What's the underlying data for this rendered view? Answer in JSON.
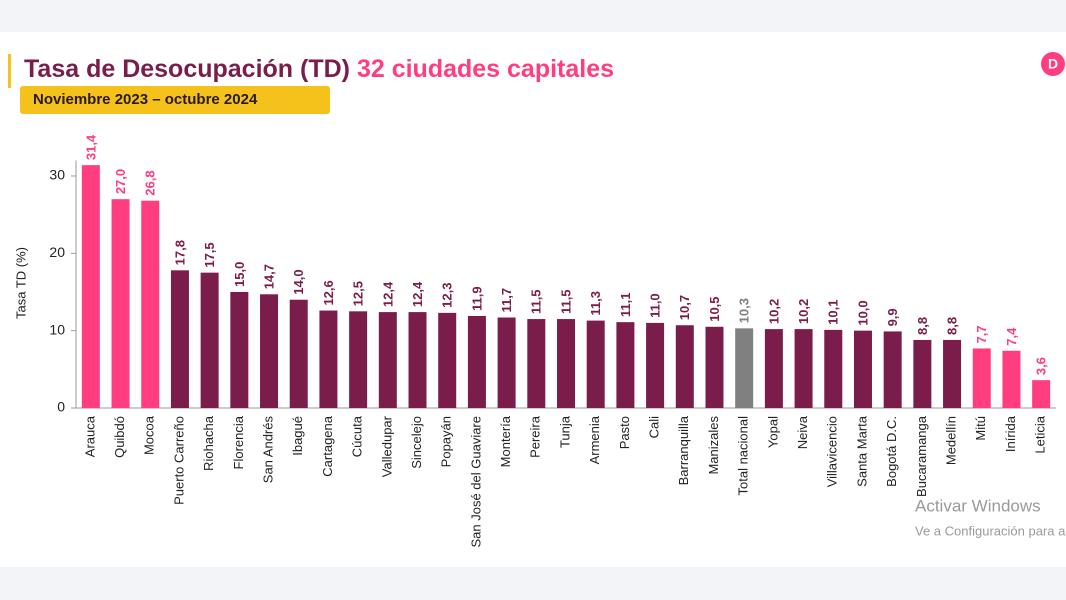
{
  "chart_data": {
    "type": "bar",
    "title": "Tasa de Desocupación (TD)",
    "title_highlight": "32 ciudades capitales",
    "subtitle": "Noviembre 2023 – octubre 2024",
    "y_label": "Tasa TD (%)",
    "categories": [
      "Arauca",
      "Quibdó",
      "Mocoa",
      "Puerto Carreño",
      "Riohacha",
      "Florencia",
      "San Andrés",
      "Ibagué",
      "Cartagena",
      "Cúcuta",
      "Valledupar",
      "Sincelejo",
      "Popayán",
      "San José del Guaviare",
      "Montería",
      "Pereira",
      "Tunja",
      "Armenia",
      "Pasto",
      "Cali",
      "Barranquilla",
      "Manizales",
      "Total nacional",
      "Yopal",
      "Neiva",
      "Villavicencio",
      "Santa Marta",
      "Bogotá D.C.",
      "Bucaramanga",
      "Medellín",
      "Mitú",
      "Inírida",
      "Leticia"
    ],
    "values": [
      31.4,
      27.0,
      26.8,
      17.8,
      17.5,
      15.0,
      14.7,
      14.0,
      12.6,
      12.5,
      12.4,
      12.4,
      12.3,
      11.9,
      11.7,
      11.5,
      11.5,
      11.3,
      11.1,
      11.0,
      10.7,
      10.5,
      10.3,
      10.2,
      10.2,
      10.1,
      10.0,
      9.9,
      8.8,
      8.8,
      7.7,
      7.4,
      3.6
    ],
    "value_labels": [
      "31,4",
      "27,0",
      "26,8",
      "17,8",
      "17,5",
      "15,0",
      "14,7",
      "14,0",
      "12,6",
      "12,5",
      "12,4",
      "12,4",
      "12,3",
      "11,9",
      "11,7",
      "11,5",
      "11,5",
      "11,3",
      "11,1",
      "11,0",
      "10,7",
      "10,5",
      "10,3",
      "10,2",
      "10,2",
      "10,1",
      "10,0",
      "9,9",
      "8,8",
      "8,8",
      "7,7",
      "7,4",
      "3,6"
    ],
    "colors": [
      "#ff3d7f",
      "#ff3d7f",
      "#ff3d7f",
      "#7a1d4a",
      "#7a1d4a",
      "#7a1d4a",
      "#7a1d4a",
      "#7a1d4a",
      "#7a1d4a",
      "#7a1d4a",
      "#7a1d4a",
      "#7a1d4a",
      "#7a1d4a",
      "#7a1d4a",
      "#7a1d4a",
      "#7a1d4a",
      "#7a1d4a",
      "#7a1d4a",
      "#7a1d4a",
      "#7a1d4a",
      "#7a1d4a",
      "#7a1d4a",
      "#808080",
      "#7a1d4a",
      "#7a1d4a",
      "#7a1d4a",
      "#7a1d4a",
      "#7a1d4a",
      "#7a1d4a",
      "#7a1d4a",
      "#ff3d7f",
      "#ff3d7f",
      "#ff3d7f"
    ],
    "ylim": [
      0,
      32
    ],
    "yticks": [
      0,
      10,
      20,
      30
    ],
    "grid": false
  },
  "watermark": [
    "Activar Windows",
    "Ve a Configuración para activar Windows"
  ]
}
